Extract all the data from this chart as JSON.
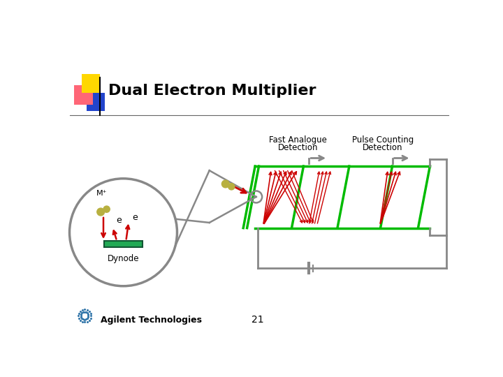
{
  "title": "Dual Electron Multiplier",
  "title_fontsize": 16,
  "title_fontweight": "bold",
  "background_color": "#ffffff",
  "label_fast_analogue": "Fast Analogue",
  "label_detection1": "Detection",
  "label_pulse_counting": "Pulse Counting",
  "label_detection2": "Detection",
  "label_mp": "M⁺",
  "label_e1": "e",
  "label_e2": "e",
  "label_dynode": "Dynode",
  "label_page": "21",
  "label_agilent": "Agilent Technologies",
  "green_color": "#00bb00",
  "red_color": "#cc0000",
  "gray_color": "#888888",
  "dark_gray": "#444444",
  "olive_color": "#b8b040",
  "teal_color": "#22aa55",
  "yellow_color": "#FFD700",
  "pink_color": "#FF6677",
  "blue_color": "#2244CC"
}
